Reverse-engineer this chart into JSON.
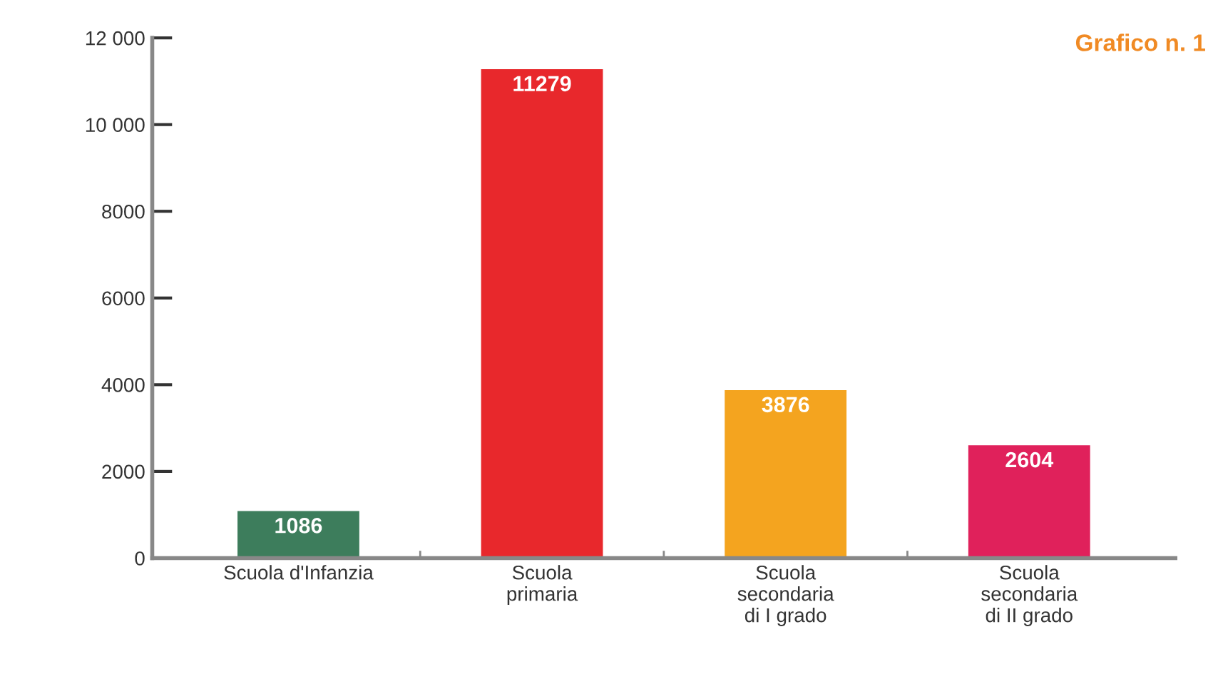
{
  "chart_data": {
    "type": "bar",
    "title": "Grafico n. 1",
    "categories": [
      "Scuola d'Infanzia",
      "Scuola\nprimaria",
      "Scuola\nsecondaria\ndi I grado",
      "Scuola\nsecondaria\ndi II grado"
    ],
    "values": [
      1086,
      11279,
      3876,
      2604
    ],
    "colors": [
      "#3d7d5c",
      "#e8282c",
      "#f4a41f",
      "#e0215b"
    ],
    "data_labels": true,
    "ylim": [
      0,
      12000
    ],
    "yticks": [
      0,
      2000,
      4000,
      6000,
      8000,
      {
        "value": 10000,
        "label": "10 000"
      },
      {
        "value": 12000,
        "label": "12 000"
      }
    ],
    "grid": false,
    "legend": false
  }
}
